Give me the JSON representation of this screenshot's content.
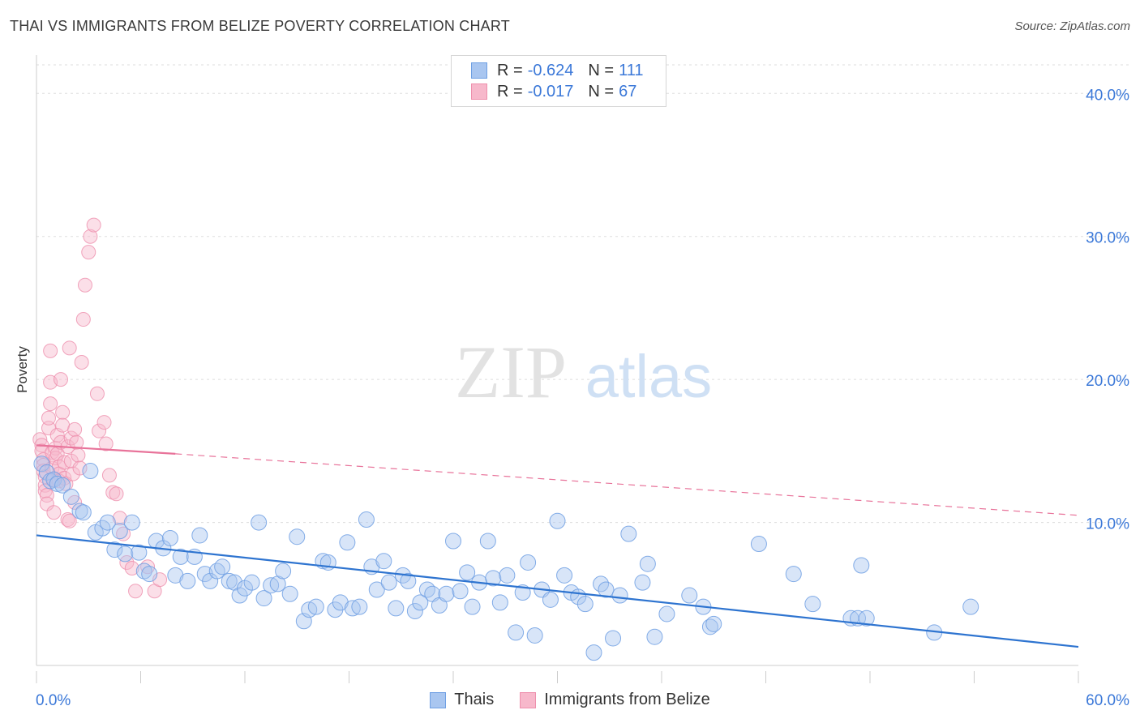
{
  "header": {
    "title": "THAI VS IMMIGRANTS FROM BELIZE POVERTY CORRELATION CHART",
    "source": "Source: ZipAtlas.com"
  },
  "watermark": {
    "zip": "ZIP",
    "atlas": "atlas"
  },
  "stats_legend": {
    "rows": [
      {
        "r_label": "R =",
        "r_value": "-0.624",
        "n_label": "N =",
        "n_value": "111"
      },
      {
        "r_label": "R =",
        "r_value": "-0.017",
        "n_label": "N =",
        "n_value": "67"
      }
    ]
  },
  "colors": {
    "thais_fill": "#a9c6f0",
    "thais_stroke": "#6e9fe3",
    "thais_line": "#2e74d0",
    "belize_fill": "#f7b8cb",
    "belize_stroke": "#ee8fac",
    "belize_line": "#e8739a",
    "axis_label": "#3b78d8",
    "grid": "#dddddd"
  },
  "chart_data": {
    "type": "scatter",
    "title": "THAI VS IMMIGRANTS FROM BELIZE POVERTY CORRELATION CHART",
    "xlabel": "",
    "ylabel": "Poverty",
    "xlim": [
      0,
      60
    ],
    "ylim": [
      0,
      42
    ],
    "x_tick_labels": [
      "0.0%",
      "60.0%"
    ],
    "y_ticks": [
      10,
      20,
      30,
      40
    ],
    "y_tick_labels": [
      "10.0%",
      "20.0%",
      "30.0%",
      "40.0%"
    ],
    "grid": "horizontal dashed",
    "legend_position": "bottom",
    "series": [
      {
        "name": "Thais",
        "r": -0.624,
        "n": 111,
        "trend": {
          "x": [
            0.0,
            60.0
          ],
          "y": [
            9.1,
            1.3
          ],
          "style": "solid"
        },
        "points": [
          [
            0.3,
            14.1
          ],
          [
            0.6,
            13.5
          ],
          [
            0.8,
            12.9
          ],
          [
            1.0,
            13.0
          ],
          [
            1.2,
            12.7
          ],
          [
            1.5,
            12.6
          ],
          [
            2.0,
            11.8
          ],
          [
            2.5,
            10.8
          ],
          [
            2.7,
            10.7
          ],
          [
            3.1,
            13.6
          ],
          [
            3.4,
            9.3
          ],
          [
            3.8,
            9.6
          ],
          [
            4.1,
            10.0
          ],
          [
            4.5,
            8.1
          ],
          [
            4.8,
            9.4
          ],
          [
            5.1,
            7.8
          ],
          [
            5.5,
            10.0
          ],
          [
            5.9,
            7.9
          ],
          [
            6.2,
            6.6
          ],
          [
            6.5,
            6.4
          ],
          [
            6.9,
            8.7
          ],
          [
            7.3,
            8.2
          ],
          [
            7.7,
            8.9
          ],
          [
            8.0,
            6.3
          ],
          [
            8.3,
            7.6
          ],
          [
            8.7,
            5.9
          ],
          [
            9.1,
            7.6
          ],
          [
            9.4,
            9.1
          ],
          [
            9.7,
            6.4
          ],
          [
            10.0,
            5.9
          ],
          [
            10.4,
            6.6
          ],
          [
            10.7,
            6.9
          ],
          [
            11.1,
            5.9
          ],
          [
            11.4,
            5.8
          ],
          [
            11.7,
            4.9
          ],
          [
            12.0,
            5.4
          ],
          [
            12.4,
            5.8
          ],
          [
            12.8,
            10.0
          ],
          [
            13.1,
            4.7
          ],
          [
            13.5,
            5.6
          ],
          [
            13.9,
            5.7
          ],
          [
            14.2,
            6.6
          ],
          [
            14.6,
            5.0
          ],
          [
            15.0,
            9.0
          ],
          [
            15.4,
            3.1
          ],
          [
            15.7,
            3.9
          ],
          [
            16.1,
            4.1
          ],
          [
            16.5,
            7.3
          ],
          [
            16.8,
            7.2
          ],
          [
            17.2,
            3.9
          ],
          [
            17.5,
            4.4
          ],
          [
            17.9,
            8.6
          ],
          [
            18.2,
            4.0
          ],
          [
            18.6,
            4.1
          ],
          [
            19.0,
            10.2
          ],
          [
            19.3,
            6.9
          ],
          [
            19.6,
            5.3
          ],
          [
            20.0,
            7.3
          ],
          [
            20.3,
            5.8
          ],
          [
            20.7,
            4.0
          ],
          [
            21.1,
            6.3
          ],
          [
            21.4,
            5.9
          ],
          [
            21.8,
            3.8
          ],
          [
            22.1,
            4.4
          ],
          [
            22.5,
            5.3
          ],
          [
            22.8,
            5.0
          ],
          [
            23.2,
            4.2
          ],
          [
            23.6,
            5.0
          ],
          [
            24.0,
            8.7
          ],
          [
            24.4,
            5.2
          ],
          [
            24.8,
            6.5
          ],
          [
            25.1,
            4.1
          ],
          [
            25.5,
            5.8
          ],
          [
            26.0,
            8.7
          ],
          [
            26.3,
            6.1
          ],
          [
            26.7,
            4.4
          ],
          [
            27.1,
            6.3
          ],
          [
            27.6,
            2.3
          ],
          [
            28.0,
            5.1
          ],
          [
            28.3,
            7.2
          ],
          [
            28.7,
            2.1
          ],
          [
            29.1,
            5.3
          ],
          [
            29.6,
            4.6
          ],
          [
            30.0,
            10.1
          ],
          [
            30.4,
            6.3
          ],
          [
            30.8,
            5.1
          ],
          [
            31.2,
            4.8
          ],
          [
            31.6,
            4.3
          ],
          [
            32.1,
            0.9
          ],
          [
            32.5,
            5.7
          ],
          [
            32.8,
            5.3
          ],
          [
            33.2,
            1.9
          ],
          [
            33.6,
            4.9
          ],
          [
            34.1,
            9.2
          ],
          [
            34.9,
            5.8
          ],
          [
            35.2,
            7.1
          ],
          [
            35.6,
            2.0
          ],
          [
            36.3,
            3.6
          ],
          [
            37.6,
            4.9
          ],
          [
            38.4,
            4.1
          ],
          [
            38.8,
            2.7
          ],
          [
            39.0,
            2.9
          ],
          [
            41.6,
            8.5
          ],
          [
            43.6,
            6.4
          ],
          [
            44.7,
            4.3
          ],
          [
            46.9,
            3.3
          ],
          [
            47.3,
            3.3
          ],
          [
            47.8,
            3.3
          ],
          [
            47.5,
            7.0
          ],
          [
            51.7,
            2.3
          ],
          [
            53.8,
            4.1
          ]
        ]
      },
      {
        "name": "Immigrants from Belize",
        "r": -0.017,
        "n": 67,
        "trend": {
          "x": [
            0.0,
            8.0
          ],
          "y": [
            15.4,
            14.8
          ],
          "style": "solid",
          "extended": {
            "x": [
              8.0,
              60.0
            ],
            "y": [
              14.8,
              10.5
            ],
            "style": "dashed"
          }
        },
        "points": [
          [
            0.2,
            15.8
          ],
          [
            0.3,
            15.4
          ],
          [
            0.3,
            15.0
          ],
          [
            0.4,
            14.4
          ],
          [
            0.4,
            14.0
          ],
          [
            0.4,
            13.6
          ],
          [
            0.5,
            13.2
          ],
          [
            0.5,
            12.6
          ],
          [
            0.5,
            12.2
          ],
          [
            0.6,
            11.9
          ],
          [
            0.6,
            11.3
          ],
          [
            0.7,
            16.6
          ],
          [
            0.7,
            17.3
          ],
          [
            0.8,
            18.3
          ],
          [
            0.8,
            19.8
          ],
          [
            0.8,
            22.0
          ],
          [
            0.9,
            14.9
          ],
          [
            0.9,
            13.8
          ],
          [
            1.0,
            13.0
          ],
          [
            1.0,
            10.7
          ],
          [
            1.1,
            15.2
          ],
          [
            1.1,
            14.5
          ],
          [
            1.2,
            16.1
          ],
          [
            1.2,
            14.8
          ],
          [
            1.3,
            13.9
          ],
          [
            1.3,
            13.4
          ],
          [
            1.3,
            12.9
          ],
          [
            1.4,
            15.6
          ],
          [
            1.4,
            20.0
          ],
          [
            1.5,
            17.7
          ],
          [
            1.5,
            16.8
          ],
          [
            1.6,
            14.2
          ],
          [
            1.6,
            13.1
          ],
          [
            1.7,
            12.7
          ],
          [
            1.8,
            15.3
          ],
          [
            1.8,
            10.2
          ],
          [
            1.9,
            10.1
          ],
          [
            1.9,
            22.2
          ],
          [
            2.0,
            15.9
          ],
          [
            2.0,
            14.3
          ],
          [
            2.1,
            13.4
          ],
          [
            2.2,
            16.5
          ],
          [
            2.2,
            11.4
          ],
          [
            2.3,
            15.6
          ],
          [
            2.4,
            14.7
          ],
          [
            2.5,
            13.8
          ],
          [
            2.6,
            21.2
          ],
          [
            2.7,
            24.2
          ],
          [
            2.8,
            26.6
          ],
          [
            3.0,
            28.9
          ],
          [
            3.1,
            30.0
          ],
          [
            3.3,
            30.8
          ],
          [
            3.5,
            19.0
          ],
          [
            3.6,
            16.4
          ],
          [
            3.9,
            17.0
          ],
          [
            4.0,
            15.5
          ],
          [
            4.2,
            13.3
          ],
          [
            4.4,
            12.1
          ],
          [
            4.6,
            12.0
          ],
          [
            4.8,
            10.3
          ],
          [
            5.0,
            9.2
          ],
          [
            5.2,
            7.2
          ],
          [
            5.5,
            6.8
          ],
          [
            5.7,
            5.2
          ],
          [
            6.4,
            6.9
          ],
          [
            6.8,
            5.2
          ],
          [
            7.1,
            6.0
          ]
        ]
      }
    ]
  },
  "bottom_legend": {
    "items": [
      {
        "label": "Thais"
      },
      {
        "label": "Immigrants from Belize"
      }
    ]
  }
}
